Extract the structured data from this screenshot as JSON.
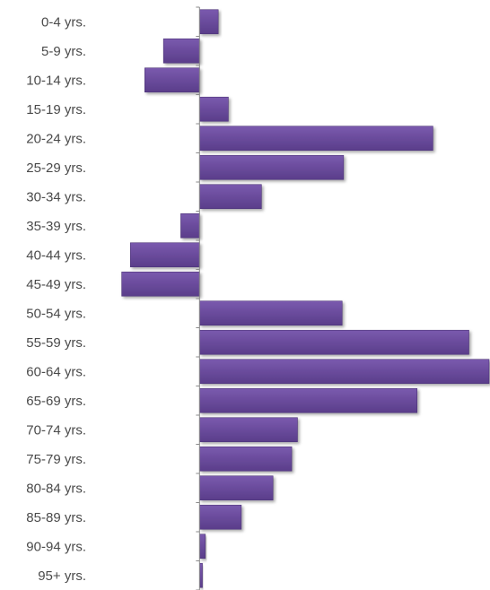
{
  "chart_data": {
    "type": "bar",
    "orientation": "horizontal",
    "categories": [
      "0-4 yrs.",
      "5-9 yrs.",
      "10-14 yrs.",
      "15-19 yrs.",
      "20-24 yrs.",
      "25-29 yrs.",
      "30-34 yrs.",
      "35-39 yrs.",
      "40-44 yrs.",
      "45-49 yrs.",
      "50-54 yrs.",
      "55-59 yrs.",
      "60-64 yrs.",
      "65-69 yrs.",
      "70-74 yrs.",
      "75-79 yrs.",
      "80-84 yrs.",
      "85-89 yrs.",
      "90-94 yrs.",
      "95+ yrs."
    ],
    "values": [
      0.65,
      -1.25,
      -1.9,
      1.0,
      8.1,
      5.0,
      2.15,
      -0.65,
      -2.4,
      -2.7,
      4.95,
      9.35,
      10.05,
      7.55,
      3.4,
      3.2,
      2.55,
      1.45,
      0.2,
      0.1
    ],
    "xlim": [
      -3.0,
      10.05
    ],
    "title": "",
    "xlabel": "",
    "ylabel": "",
    "grid": false,
    "legend": "none",
    "bar_color": "#6a4a9c",
    "bar_color_dark": "#4e3577",
    "axis_color": "#8a8a8a",
    "label_color": "#4a4a4a"
  }
}
